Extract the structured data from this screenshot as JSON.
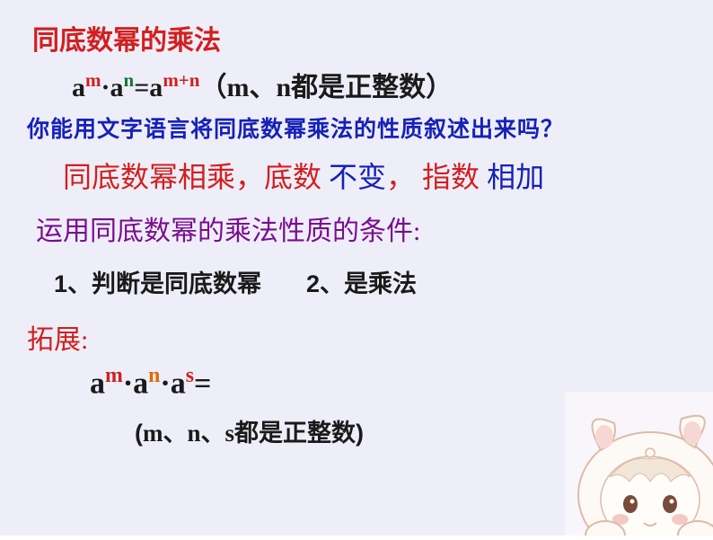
{
  "colors": {
    "background": "#eeeef9",
    "black": "#1a1a1a",
    "red": "#d21f1f",
    "green": "#0e7a2f",
    "blue": "#1621b8",
    "purple": "#7a0d8f",
    "orange": "#de6b00"
  },
  "title": {
    "text": "同底数幂的乘法",
    "fontsize": 30,
    "color": "#d21f1f"
  },
  "formula1": {
    "a1": "a",
    "m": "m",
    "dot": "·",
    "a2": "a",
    "n": "n",
    "eq": "=a",
    "mplusn": "m+n",
    "paren_open": "（",
    "mvar": "m",
    "sep": "、",
    "nvar": "n",
    "tail": "都是正整数）",
    "fontsize": 30
  },
  "question": {
    "text": "你能用文字语言将同底数幂乘法的性质叙述出来吗？",
    "fontsize": 25,
    "color": "#1621b8"
  },
  "rule": {
    "part1": "同底数幂相乘，底数",
    "part2": "不变",
    "comma": "，",
    "part3": "指数",
    "part4": "相加",
    "fontsize": 32
  },
  "condition_title": {
    "text": "运用同底数幂的乘法性质的条件:",
    "fontsize": 30,
    "color": "#7a0d8f"
  },
  "cond1": {
    "text": "1、判断是同底数幂",
    "fontsize": 27
  },
  "cond2": {
    "text": "2、是乘法",
    "fontsize": 27
  },
  "extension": {
    "text": "拓展:",
    "fontsize": 30,
    "color": "#d21f1f"
  },
  "formula2": {
    "a1": "a",
    "m": "m",
    "dot1": "·",
    "a2": "a",
    "n": "n",
    "dot2": "·",
    "a3": "a",
    "s": "s",
    "eq": "=",
    "fontsize": 34
  },
  "paren_note": {
    "open": "(",
    "m": "m",
    "sep1": "、",
    "n": "n",
    "sep2": "、",
    "s": "s",
    "tail": "都是正整数)",
    "fontsize": 27
  },
  "mascot": {
    "body_fill": "#fdf9f5",
    "body_stroke": "#dcbba8",
    "inner_ear": "#f6d7d4",
    "eye": "#7a4a3a",
    "blush": "#f3c9c4",
    "bg": "#f8f6fb"
  }
}
